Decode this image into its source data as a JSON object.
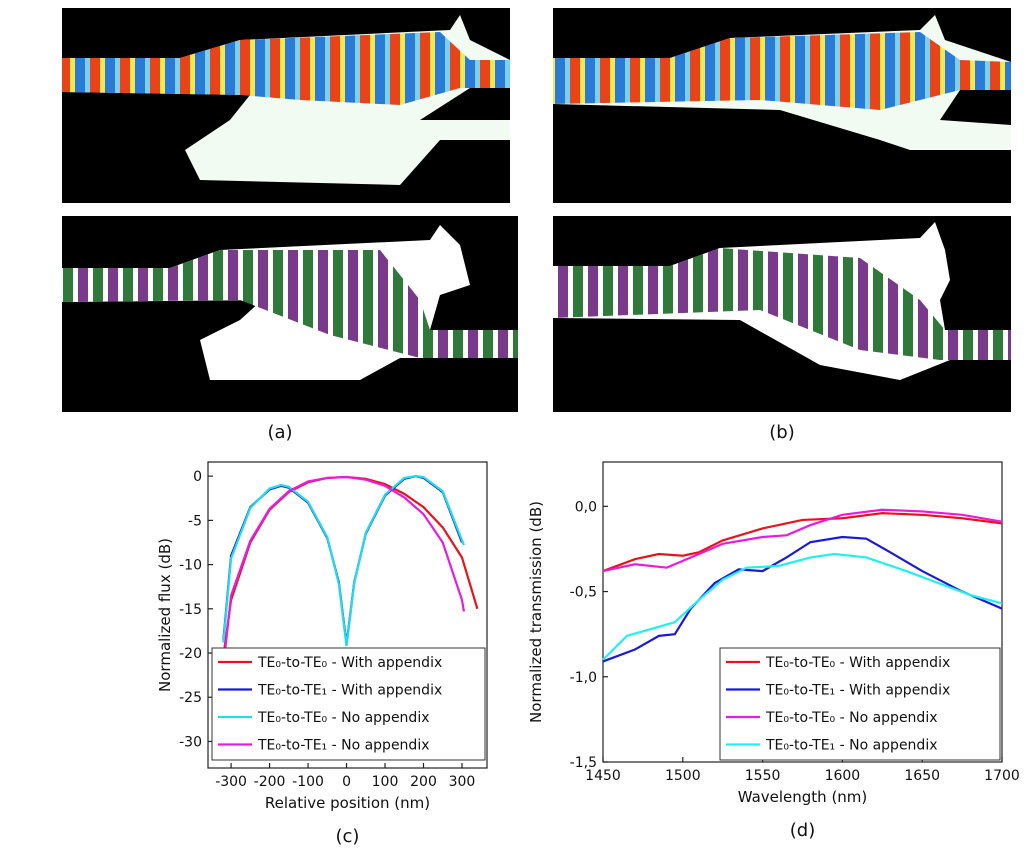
{
  "panels": {
    "a": "(a)",
    "b": "(b)"
  },
  "chart_data": [
    {
      "type": "line",
      "panel_label": "(c)",
      "x_label": "Relative position (nm)",
      "y_label": "Normalized flux (dB)",
      "xlim": [
        -360,
        365
      ],
      "ylim": [
        -33,
        1.6
      ],
      "xticks": [
        -300,
        -200,
        -100,
        0,
        100,
        200,
        300
      ],
      "yticks": [
        0,
        -5,
        -10,
        -15,
        -20,
        -25,
        -30
      ],
      "series": [
        {
          "name": "TE₀-to-TE₀ - With appendix",
          "color": "#e8141c",
          "x": [
            -325,
            -300,
            -250,
            -200,
            -150,
            -100,
            -50,
            0,
            50,
            100,
            150,
            200,
            250,
            300,
            340
          ],
          "values": [
            -22,
            -14,
            -7.5,
            -3.8,
            -1.8,
            -0.7,
            -0.2,
            -0.1,
            -0.3,
            -0.9,
            -2,
            -3.5,
            -5.8,
            -9.2,
            -15
          ]
        },
        {
          "name": "TE₀-to-TE₁ - With appendix",
          "color": "#1a1adc",
          "x": [
            -320,
            -300,
            -250,
            -200,
            -170,
            -150,
            -100,
            -50,
            -20,
            0,
            20,
            50,
            100,
            150,
            180,
            200,
            250,
            300
          ],
          "values": [
            -18.5,
            -9,
            -3.5,
            -1.5,
            -1.1,
            -1.3,
            -3,
            -7,
            -12,
            -19,
            -12,
            -6.5,
            -2.2,
            -0.3,
            0,
            -0.2,
            -1.8,
            -7.5
          ]
        },
        {
          "name": "TE₀-to-TE₀ - No appendix",
          "color": "#22dce8",
          "x": [
            -320,
            -300,
            -250,
            -200,
            -170,
            -150,
            -100,
            -50,
            -20,
            0,
            20,
            50,
            100,
            150,
            180,
            200,
            250,
            305
          ],
          "values": [
            -18.8,
            -9.3,
            -3.6,
            -1.4,
            -1,
            -1.2,
            -2.9,
            -6.9,
            -12.2,
            -19.2,
            -12.1,
            -6.4,
            -2.1,
            -0.2,
            0,
            -0.1,
            -1.7,
            -7.8
          ]
        },
        {
          "name": "TE₀-to-TE₁ - No appendix",
          "color": "#e81ce0",
          "x": [
            -320,
            -300,
            -250,
            -200,
            -150,
            -100,
            -50,
            0,
            50,
            100,
            150,
            200,
            250,
            300,
            305
          ],
          "values": [
            -21.5,
            -13.5,
            -7.3,
            -3.7,
            -1.7,
            -0.6,
            -0.2,
            -0.1,
            -0.4,
            -1.1,
            -2.4,
            -4.3,
            -7.5,
            -14,
            -15.3
          ]
        }
      ]
    },
    {
      "type": "line",
      "panel_label": "(d)",
      "x_label": "Wavelength (nm)",
      "y_label": "Normalized transmission (dB)",
      "xlim": [
        1450,
        1700
      ],
      "ylim": [
        -1.5,
        0.26
      ],
      "xticks": [
        1450,
        1500,
        1550,
        1600,
        1650,
        1700
      ],
      "yticks": [
        {
          "value": 0,
          "label": "0,0"
        },
        {
          "value": -0.5,
          "label": "-0,5"
        },
        {
          "value": -1,
          "label": "-1,0"
        },
        {
          "value": -1.5,
          "label": "-1,5"
        }
      ],
      "series": [
        {
          "name": "TE₀-to-TE₀ - With appendix",
          "color": "#e8141c",
          "x": [
            1450,
            1470,
            1485,
            1500,
            1510,
            1525,
            1550,
            1575,
            1600,
            1625,
            1650,
            1675,
            1700
          ],
          "values": [
            -0.38,
            -0.31,
            -0.28,
            -0.29,
            -0.27,
            -0.2,
            -0.13,
            -0.08,
            -0.07,
            -0.04,
            -0.05,
            -0.07,
            -0.1
          ]
        },
        {
          "name": "TE₀-to-TE₁ - With appendix",
          "color": "#1a1adc",
          "x": [
            1450,
            1470,
            1485,
            1495,
            1505,
            1520,
            1535,
            1550,
            1565,
            1580,
            1600,
            1615,
            1630,
            1650,
            1675,
            1700
          ],
          "values": [
            -0.91,
            -0.84,
            -0.76,
            -0.75,
            -0.6,
            -0.45,
            -0.37,
            -0.38,
            -0.3,
            -0.21,
            -0.18,
            -0.19,
            -0.27,
            -0.38,
            -0.5,
            -0.6
          ]
        },
        {
          "name": "TE₀-to-TE₀ - No appendix",
          "color": "#e81ce0",
          "x": [
            1450,
            1470,
            1490,
            1505,
            1525,
            1550,
            1565,
            1580,
            1600,
            1625,
            1650,
            1675,
            1700
          ],
          "values": [
            -0.38,
            -0.34,
            -0.36,
            -0.3,
            -0.22,
            -0.18,
            -0.17,
            -0.11,
            -0.05,
            -0.02,
            -0.03,
            -0.05,
            -0.09
          ]
        },
        {
          "name": "TE₀-to-TE₁ - No appendix",
          "color": "#22f0f0",
          "x": [
            1450,
            1465,
            1480,
            1495,
            1510,
            1525,
            1540,
            1560,
            1580,
            1595,
            1615,
            1640,
            1660,
            1680,
            1700
          ],
          "values": [
            -0.9,
            -0.76,
            -0.72,
            -0.68,
            -0.55,
            -0.43,
            -0.36,
            -0.35,
            -0.3,
            -0.28,
            -0.3,
            -0.38,
            -0.45,
            -0.52,
            -0.57
          ]
        }
      ]
    }
  ]
}
